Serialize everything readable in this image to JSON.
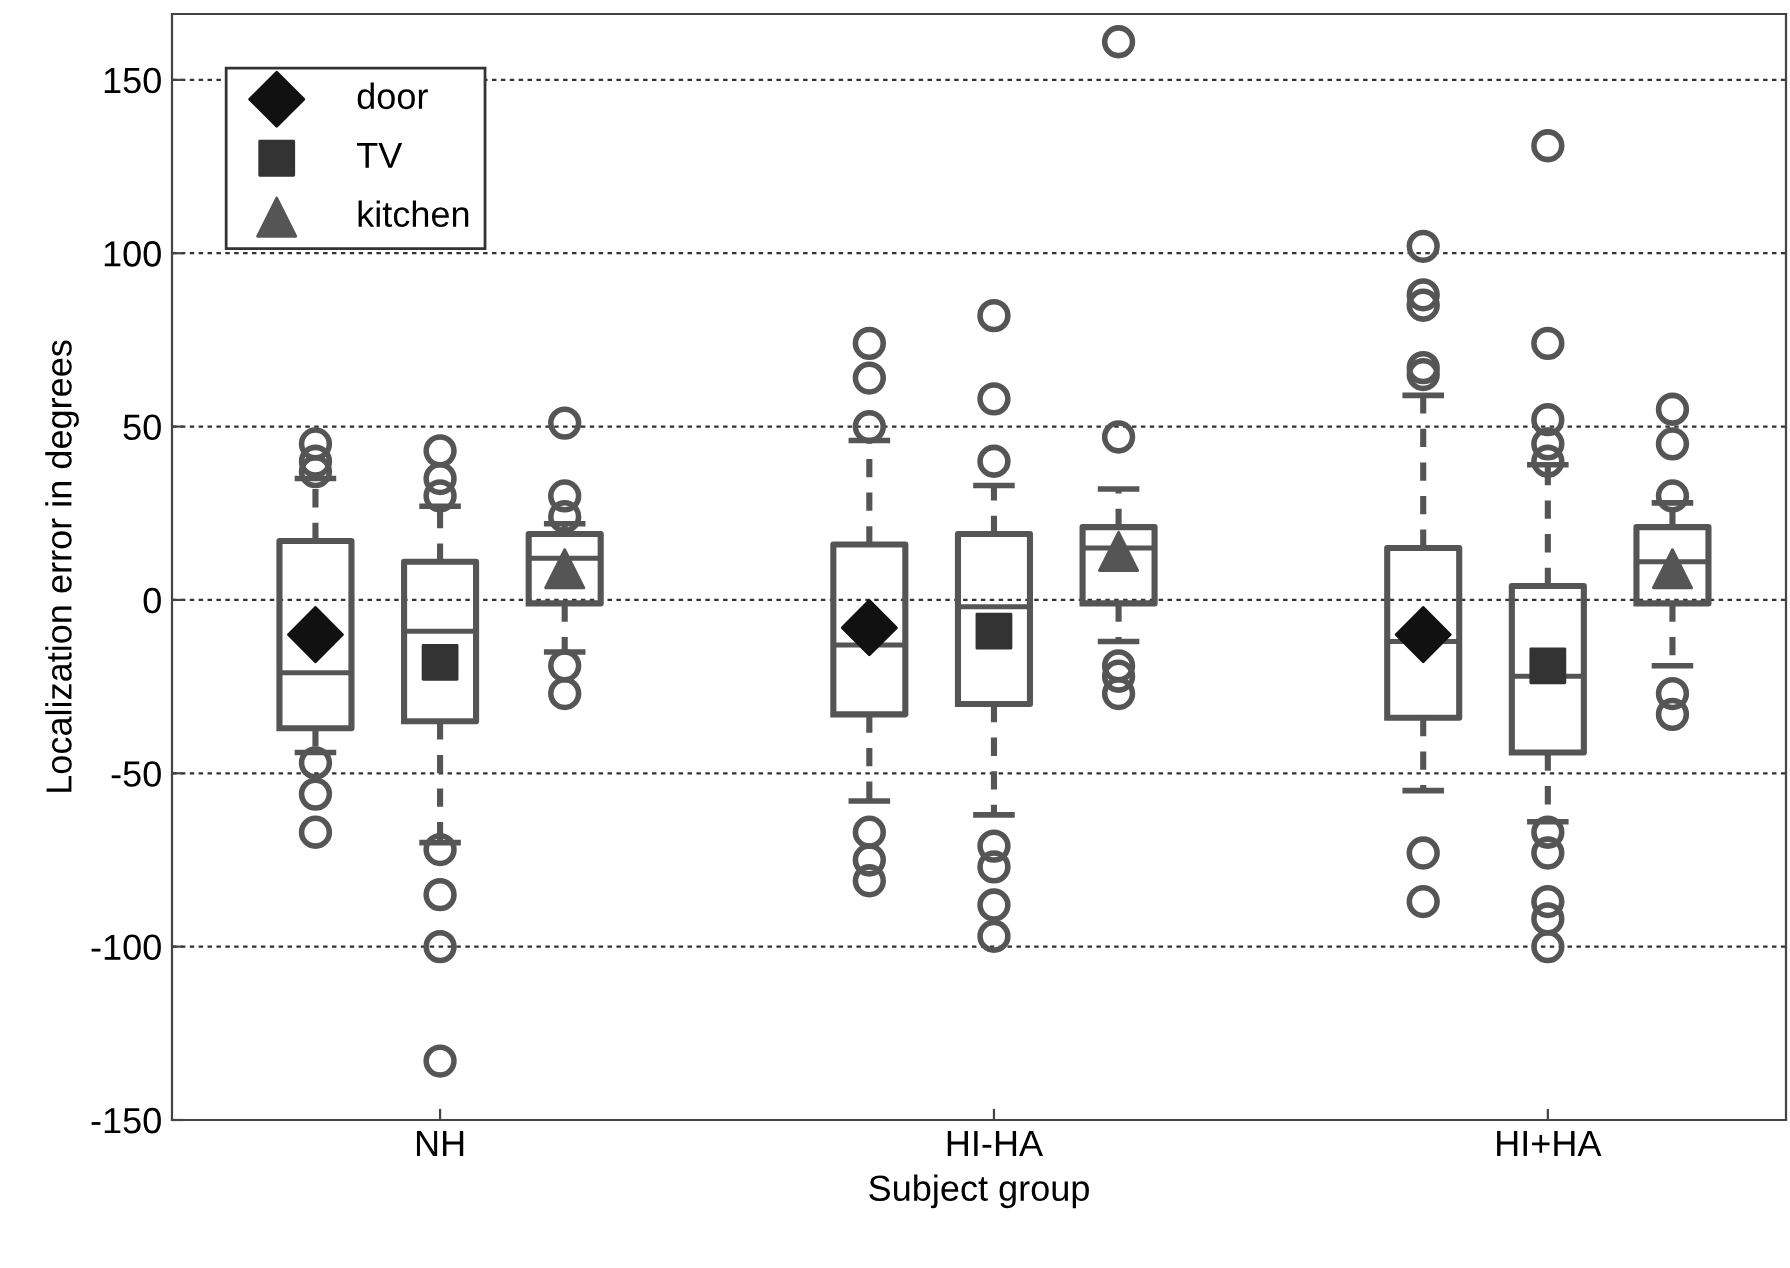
{
  "chart_data": {
    "type": "box",
    "xlabel": "Subject group",
    "ylabel": "Localization error in degrees",
    "categories": [
      "NH",
      "HI-HA",
      "HI+HA"
    ],
    "ylim": [
      -150,
      169
    ],
    "yticks": [
      -150,
      -100,
      -50,
      0,
      50,
      100,
      150
    ],
    "grid": "y",
    "legend": "top left",
    "series": [
      {
        "color": "#555555",
        "boxes": [
          {
            "low": -44,
            "q1": -37,
            "median": -21,
            "q3": 17,
            "high": 35,
            "outliers": [
              45,
              40,
              37,
              -47,
              -56,
              -67
            ]
          },
          {
            "low": -58,
            "q1": -33,
            "median": -13,
            "q3": 16,
            "high": 46,
            "outliers": [
              74,
              64,
              50,
              -67,
              -75,
              -81
            ]
          },
          {
            "low": -55,
            "q1": -34,
            "median": -12,
            "q3": 15,
            "high": 59,
            "outliers": [
              102,
              88,
              85,
              67,
              65,
              -73,
              -87
            ]
          }
        ]
      },
      {
        "color": "#555555",
        "boxes": [
          {
            "low": -70,
            "q1": -35,
            "median": -9,
            "q3": 11,
            "high": 27,
            "outliers": [
              43,
              35,
              30,
              -72,
              -85,
              -100,
              -133
            ]
          },
          {
            "low": -62,
            "q1": -30,
            "median": -2,
            "q3": 19,
            "high": 33,
            "outliers": [
              82,
              58,
              40,
              -71,
              -77,
              -88,
              -97
            ]
          },
          {
            "low": -64,
            "q1": -44,
            "median": -22,
            "q3": 4,
            "high": 39,
            "outliers": [
              131,
              74,
              52,
              45,
              40,
              -67,
              -73,
              -87,
              -92,
              -100
            ]
          }
        ]
      },
      {
        "color": "#555555",
        "boxes": [
          {
            "low": -15,
            "q1": -1,
            "median": 12,
            "q3": 19,
            "high": 22,
            "outliers": [
              51,
              30,
              24,
              -19,
              -27
            ]
          },
          {
            "low": -12,
            "q1": -1,
            "median": 15,
            "q3": 21,
            "high": 32,
            "outliers": [
              161,
              47,
              -19,
              -22,
              -27
            ]
          },
          {
            "low": -19,
            "q1": -1,
            "median": 11,
            "q3": 21,
            "high": 28,
            "outliers": [
              55,
              45,
              30,
              -27,
              -33
            ]
          }
        ]
      },
      {
        "type": "scatter",
        "name": "door",
        "color": "#111111",
        "marker": "diamond",
        "x": [
          "NH",
          "HI-HA",
          "HI+HA"
        ],
        "values": [
          -10,
          -8,
          -10
        ]
      },
      {
        "type": "scatter",
        "name": "TV",
        "color": "#333333",
        "marker": "square",
        "x": [
          "NH",
          "HI-HA",
          "HI+HA"
        ],
        "values": [
          -18,
          -9,
          -19
        ]
      },
      {
        "type": "scatter",
        "name": "kitchen",
        "color": "#555555",
        "marker": "triangle",
        "x": [
          "NH",
          "HI-HA",
          "HI+HA"
        ],
        "values": [
          9,
          14,
          9
        ]
      }
    ]
  }
}
